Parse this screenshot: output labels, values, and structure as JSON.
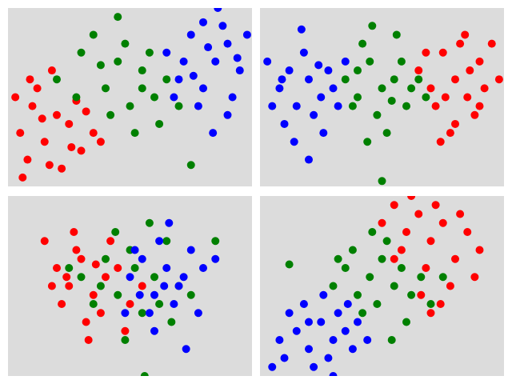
{
  "chart_data": [
    {
      "type": "scatter",
      "xlim": [
        0,
        100
      ],
      "ylim": [
        0,
        100
      ],
      "series": [
        {
          "color": "#ff0000",
          "x": [
            5,
            10,
            15,
            20,
            8,
            25,
            30,
            12,
            18,
            3,
            28,
            35,
            22,
            6,
            14,
            32,
            26,
            9,
            17,
            38
          ],
          "values": [
            30,
            45,
            25,
            40,
            15,
            35,
            20,
            55,
            65,
            50,
            48,
            30,
            10,
            5,
            38,
            42,
            22,
            60,
            12,
            25
          ]
        },
        {
          "color": "#008000",
          "x": [
            20,
            30,
            40,
            45,
            50,
            55,
            60,
            35,
            48,
            52,
            58,
            65,
            42,
            28,
            62,
            45,
            55,
            70,
            38,
            75
          ],
          "values": [
            60,
            75,
            55,
            70,
            45,
            65,
            50,
            85,
            80,
            30,
            75,
            60,
            40,
            50,
            35,
            95,
            55,
            45,
            68,
            12
          ]
        },
        {
          "color": "#0000ff",
          "x": [
            65,
            70,
            75,
            80,
            85,
            90,
            95,
            78,
            88,
            92,
            72,
            82,
            98,
            86,
            76,
            94,
            68,
            84,
            90,
            80
          ],
          "values": [
            75,
            60,
            85,
            55,
            70,
            80,
            65,
            45,
            90,
            50,
            70,
            78,
            85,
            100,
            62,
            72,
            50,
            30,
            40,
            92
          ]
        }
      ]
    },
    {
      "type": "scatter",
      "xlim": [
        0,
        100
      ],
      "ylim": [
        0,
        100
      ],
      "series": [
        {
          "color": "#0000ff",
          "x": [
            3,
            8,
            12,
            15,
            20,
            25,
            10,
            18,
            28,
            5,
            22,
            30,
            14,
            26,
            35,
            17,
            9,
            32,
            20,
            24
          ],
          "values": [
            70,
            55,
            65,
            45,
            60,
            50,
            35,
            75,
            65,
            45,
            40,
            55,
            25,
            30,
            70,
            88,
            60,
            45,
            15,
            68
          ]
        },
        {
          "color": "#008000",
          "x": [
            35,
            40,
            45,
            50,
            55,
            60,
            42,
            48,
            58,
            52,
            62,
            38,
            46,
            65,
            54,
            44,
            68,
            40,
            56,
            50
          ],
          "values": [
            60,
            50,
            70,
            55,
            60,
            45,
            80,
            40,
            70,
            30,
            55,
            45,
            90,
            60,
            48,
            25,
            50,
            65,
            85,
            3
          ]
        },
        {
          "color": "#ff0000",
          "x": [
            65,
            70,
            75,
            80,
            85,
            90,
            95,
            72,
            78,
            88,
            82,
            92,
            68,
            76,
            86,
            98,
            74,
            84,
            90,
            80
          ],
          "values": [
            65,
            55,
            75,
            60,
            50,
            70,
            80,
            45,
            30,
            40,
            80,
            55,
            75,
            50,
            65,
            60,
            25,
            85,
            45,
            35
          ]
        }
      ]
    },
    {
      "type": "scatter",
      "xlim": [
        0,
        100
      ],
      "ylim": [
        0,
        100
      ],
      "series": [
        {
          "color": "#ff0000",
          "x": [
            15,
            20,
            25,
            30,
            35,
            40,
            22,
            28,
            38,
            45,
            18,
            32,
            42,
            50,
            27,
            36,
            48,
            24,
            55,
            33
          ],
          "values": [
            75,
            60,
            50,
            65,
            45,
            55,
            40,
            70,
            35,
            60,
            50,
            30,
            75,
            40,
            80,
            62,
            25,
            55,
            50,
            20
          ]
        },
        {
          "color": "#008000",
          "x": [
            30,
            40,
            45,
            50,
            55,
            60,
            35,
            65,
            48,
            25,
            58,
            62,
            52,
            70,
            44,
            67,
            38,
            75,
            56,
            85
          ],
          "values": [
            55,
            65,
            45,
            70,
            35,
            55,
            40,
            75,
            20,
            60,
            85,
            40,
            60,
            50,
            80,
            30,
            50,
            45,
            0,
            75
          ]
        },
        {
          "color": "#0000ff",
          "x": [
            50,
            55,
            60,
            65,
            70,
            75,
            58,
            62,
            68,
            72,
            80,
            54,
            66,
            78,
            48,
            85,
            60,
            73,
            64,
            52
          ],
          "values": [
            55,
            65,
            45,
            60,
            50,
            70,
            35,
            75,
            40,
            55,
            60,
            45,
            85,
            35,
            35,
            65,
            25,
            15,
            50,
            70
          ]
        }
      ]
    },
    {
      "type": "scatter",
      "xlim": [
        0,
        100
      ],
      "ylim": [
        0,
        100
      ],
      "series": [
        {
          "color": "#0000ff",
          "x": [
            10,
            15,
            20,
            25,
            30,
            18,
            28,
            35,
            12,
            22,
            32,
            38,
            26,
            8,
            40,
            20,
            30,
            36,
            44,
            5
          ],
          "values": [
            10,
            25,
            15,
            30,
            20,
            40,
            10,
            25,
            35,
            5,
            35,
            15,
            45,
            20,
            30,
            30,
            0,
            40,
            20,
            5
          ]
        },
        {
          "color": "#008000",
          "x": [
            30,
            35,
            40,
            45,
            50,
            55,
            38,
            48,
            58,
            62,
            42,
            52,
            66,
            32,
            60,
            70,
            46,
            54,
            75,
            12
          ],
          "values": [
            50,
            60,
            45,
            55,
            65,
            50,
            70,
            40,
            60,
            45,
            35,
            75,
            55,
            65,
            30,
            40,
            80,
            20,
            55,
            62
          ]
        },
        {
          "color": "#ff0000",
          "x": [
            50,
            55,
            60,
            65,
            70,
            75,
            58,
            68,
            72,
            80,
            62,
            78,
            85,
            55,
            66,
            82,
            90,
            74,
            88,
            70
          ],
          "values": [
            85,
            95,
            80,
            90,
            75,
            85,
            70,
            60,
            95,
            65,
            100,
            50,
            80,
            65,
            45,
            90,
            70,
            40,
            55,
            35
          ]
        }
      ]
    }
  ]
}
